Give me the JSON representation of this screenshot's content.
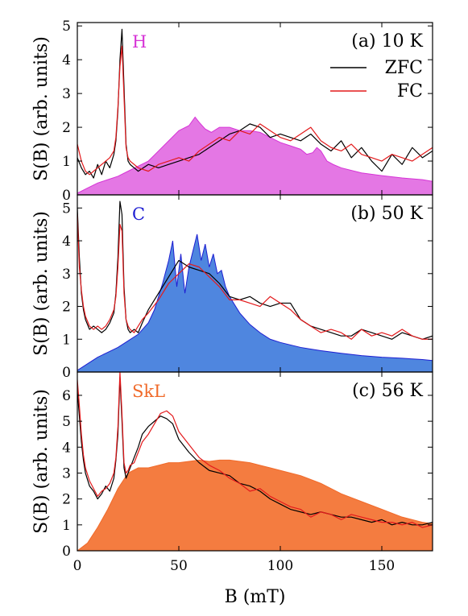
{
  "chart_data": [
    {
      "type": "area",
      "panel_label": "(a) 10 K",
      "phase_label": "H",
      "phase_color": "#d633d6",
      "fill_color": "#e477e4",
      "ylabel": "S(B) (arb. units)",
      "xlim": [
        0,
        175
      ],
      "ylim": [
        0,
        5.1
      ],
      "yticks": [
        0,
        1,
        2,
        3,
        4,
        5
      ],
      "legend": {
        "placement": "top-right",
        "entries": [
          "ZFC",
          "FC"
        ]
      },
      "series": [
        {
          "name": "ZFC",
          "style": "line",
          "color": "#000000",
          "x": [
            0,
            2,
            4,
            6,
            8,
            10,
            12,
            14,
            16,
            18,
            19,
            20,
            21,
            22,
            23,
            24,
            25,
            26,
            28,
            30,
            35,
            40,
            45,
            50,
            55,
            60,
            65,
            70,
            75,
            80,
            85,
            90,
            95,
            100,
            105,
            110,
            115,
            120,
            125,
            130,
            135,
            140,
            145,
            150,
            155,
            160,
            165,
            170,
            175
          ],
          "y": [
            1.1,
            0.8,
            0.6,
            0.7,
            0.5,
            0.9,
            0.6,
            1.0,
            0.8,
            1.2,
            1.6,
            2.5,
            4.0,
            4.9,
            3.2,
            1.5,
            1.0,
            0.9,
            0.8,
            0.7,
            0.9,
            0.8,
            0.9,
            1.0,
            1.1,
            1.2,
            1.4,
            1.6,
            1.8,
            1.9,
            2.1,
            2.0,
            1.7,
            1.8,
            1.7,
            1.6,
            1.8,
            1.5,
            1.3,
            1.6,
            1.1,
            1.4,
            1.0,
            0.7,
            1.2,
            0.9,
            1.4,
            1.1,
            1.3
          ]
        },
        {
          "name": "FC",
          "style": "line",
          "color": "#e31a1c",
          "x": [
            0,
            2,
            4,
            6,
            8,
            10,
            12,
            14,
            16,
            18,
            19,
            20,
            21,
            22,
            23,
            24,
            25,
            26,
            28,
            30,
            35,
            40,
            45,
            50,
            55,
            60,
            65,
            70,
            75,
            80,
            85,
            90,
            95,
            100,
            105,
            110,
            115,
            120,
            125,
            130,
            135,
            140,
            145,
            150,
            155,
            160,
            165,
            170,
            175
          ],
          "y": [
            1.5,
            1.0,
            0.7,
            0.6,
            0.7,
            0.8,
            0.9,
            1.0,
            1.1,
            1.3,
            1.7,
            2.6,
            3.8,
            4.4,
            2.9,
            1.4,
            1.1,
            1.0,
            0.9,
            0.8,
            0.7,
            0.9,
            1.0,
            1.1,
            1.0,
            1.3,
            1.5,
            1.7,
            1.6,
            1.9,
            1.8,
            2.1,
            1.9,
            1.7,
            1.6,
            1.8,
            2.0,
            1.6,
            1.4,
            1.3,
            1.5,
            1.2,
            1.1,
            1.0,
            1.2,
            1.1,
            1.0,
            1.2,
            1.4
          ]
        },
        {
          "name": "H",
          "style": "area",
          "color": "#e477e4",
          "x": [
            0,
            5,
            10,
            15,
            20,
            25,
            30,
            35,
            40,
            45,
            50,
            55,
            58,
            60,
            63,
            66,
            70,
            75,
            80,
            85,
            90,
            95,
            100,
            105,
            110,
            113,
            116,
            118,
            120,
            123,
            126,
            130,
            140,
            150,
            160,
            170,
            175
          ],
          "y": [
            0.05,
            0.2,
            0.35,
            0.45,
            0.55,
            0.7,
            0.85,
            1.0,
            1.3,
            1.6,
            1.9,
            2.05,
            2.3,
            2.15,
            1.95,
            1.85,
            2.0,
            2.0,
            1.9,
            1.9,
            1.85,
            1.7,
            1.55,
            1.45,
            1.35,
            1.2,
            1.25,
            1.4,
            1.3,
            1.0,
            0.9,
            0.8,
            0.65,
            0.57,
            0.5,
            0.45,
            0.4
          ]
        }
      ]
    },
    {
      "type": "area",
      "panel_label": "(b) 50 K",
      "phase_label": "C",
      "phase_color": "#1e1ed2",
      "fill_color": "#4f86df",
      "ylabel": "S(B) (arb. units)",
      "xlim": [
        0,
        175
      ],
      "ylim": [
        0,
        5.4
      ],
      "yticks": [
        0,
        1,
        2,
        3,
        4,
        5
      ],
      "series": [
        {
          "name": "ZFC",
          "style": "line",
          "color": "#000000",
          "x": [
            0,
            1,
            2,
            3,
            4,
            6,
            8,
            10,
            12,
            14,
            16,
            18,
            19,
            20,
            21,
            22,
            23,
            24,
            25,
            26,
            28,
            30,
            32,
            35,
            40,
            45,
            50,
            55,
            60,
            65,
            70,
            75,
            80,
            85,
            90,
            95,
            100,
            105,
            110,
            115,
            120,
            125,
            130,
            135,
            140,
            145,
            150,
            155,
            160,
            165,
            170,
            175
          ],
          "y": [
            5.0,
            3.5,
            2.4,
            1.9,
            1.6,
            1.3,
            1.4,
            1.3,
            1.2,
            1.3,
            1.5,
            1.8,
            2.4,
            3.5,
            5.2,
            4.8,
            2.6,
            1.6,
            1.3,
            1.2,
            1.3,
            1.2,
            1.5,
            1.9,
            2.4,
            2.9,
            3.4,
            3.2,
            3.1,
            3.0,
            2.7,
            2.3,
            2.2,
            2.3,
            2.1,
            2.0,
            2.1,
            2.1,
            1.6,
            1.4,
            1.3,
            1.2,
            1.1,
            1.1,
            1.3,
            1.2,
            1.1,
            1.0,
            1.2,
            1.1,
            1.0,
            1.1
          ]
        },
        {
          "name": "FC",
          "style": "line",
          "color": "#e31a1c",
          "x": [
            0,
            1,
            2,
            3,
            4,
            6,
            8,
            10,
            12,
            14,
            16,
            18,
            19,
            20,
            21,
            22,
            23,
            24,
            25,
            26,
            28,
            30,
            32,
            35,
            40,
            45,
            50,
            55,
            60,
            65,
            70,
            75,
            80,
            85,
            90,
            95,
            100,
            105,
            110,
            115,
            120,
            125,
            130,
            135,
            140,
            145,
            150,
            155,
            160,
            165,
            170,
            175
          ],
          "y": [
            4.8,
            3.2,
            2.5,
            2.0,
            1.7,
            1.4,
            1.3,
            1.4,
            1.3,
            1.4,
            1.6,
            1.9,
            2.3,
            3.2,
            4.5,
            4.3,
            2.4,
            1.6,
            1.4,
            1.3,
            1.2,
            1.4,
            1.6,
            1.8,
            2.2,
            2.7,
            3.0,
            3.3,
            3.2,
            2.9,
            2.6,
            2.2,
            2.2,
            2.1,
            2.0,
            2.3,
            2.1,
            1.9,
            1.6,
            1.4,
            1.2,
            1.3,
            1.2,
            1.0,
            1.3,
            1.1,
            1.2,
            1.1,
            1.3,
            1.1,
            1.0,
            1.0
          ]
        },
        {
          "name": "C",
          "style": "area",
          "color": "#4f86df",
          "x": [
            0,
            5,
            10,
            15,
            20,
            25,
            30,
            35,
            38,
            40,
            42,
            45,
            47,
            49,
            51,
            53,
            55,
            57,
            59,
            61,
            63,
            65,
            67,
            69,
            71,
            73,
            75,
            80,
            85,
            90,
            95,
            100,
            110,
            120,
            130,
            140,
            150,
            160,
            170,
            175
          ],
          "y": [
            0.05,
            0.25,
            0.45,
            0.6,
            0.75,
            0.95,
            1.15,
            1.5,
            1.9,
            2.3,
            2.7,
            3.4,
            4.0,
            2.6,
            3.6,
            2.4,
            3.2,
            3.7,
            4.2,
            3.4,
            3.9,
            3.2,
            3.6,
            3.0,
            3.1,
            2.6,
            2.3,
            1.8,
            1.45,
            1.2,
            1.0,
            0.9,
            0.75,
            0.65,
            0.57,
            0.5,
            0.45,
            0.42,
            0.38,
            0.35
          ]
        }
      ]
    },
    {
      "type": "area",
      "panel_label": "(c) 56 K",
      "phase_label": "SkL",
      "phase_color": "#f06a2a",
      "fill_color": "#f47c40",
      "ylabel": "S(B) (arb. units)",
      "xlabel": "B (mT)",
      "xlim": [
        0,
        175
      ],
      "ylim": [
        0,
        6.9
      ],
      "yticks": [
        0,
        1,
        2,
        3,
        4,
        5,
        6
      ],
      "xticks": [
        0,
        50,
        100,
        150
      ],
      "series": [
        {
          "name": "ZFC",
          "style": "line",
          "color": "#000000",
          "x": [
            0,
            1,
            2,
            3,
            4,
            6,
            8,
            10,
            12,
            14,
            16,
            18,
            19,
            20,
            21,
            22,
            23,
            24,
            25,
            26,
            28,
            30,
            32,
            35,
            38,
            41,
            44,
            47,
            50,
            55,
            60,
            65,
            70,
            75,
            80,
            85,
            90,
            95,
            100,
            105,
            110,
            115,
            120,
            125,
            130,
            135,
            140,
            145,
            150,
            155,
            160,
            165,
            170,
            175
          ],
          "y": [
            6.2,
            5.2,
            4.2,
            3.5,
            3.0,
            2.5,
            2.3,
            2.0,
            2.2,
            2.5,
            2.3,
            2.8,
            3.5,
            4.5,
            6.7,
            5.0,
            3.2,
            2.8,
            3.0,
            3.2,
            3.6,
            4.0,
            4.5,
            4.8,
            5.0,
            5.2,
            5.1,
            4.9,
            4.3,
            3.8,
            3.4,
            3.1,
            3.0,
            2.9,
            2.6,
            2.5,
            2.3,
            2.0,
            1.8,
            1.6,
            1.5,
            1.4,
            1.5,
            1.4,
            1.3,
            1.3,
            1.2,
            1.1,
            1.2,
            1.0,
            1.1,
            1.0,
            1.0,
            1.1
          ]
        },
        {
          "name": "FC",
          "style": "line",
          "color": "#e31a1c",
          "x": [
            0,
            1,
            2,
            3,
            4,
            6,
            8,
            10,
            12,
            14,
            16,
            18,
            19,
            20,
            21,
            22,
            23,
            24,
            25,
            26,
            28,
            30,
            32,
            35,
            38,
            41,
            44,
            47,
            50,
            55,
            60,
            65,
            70,
            75,
            80,
            85,
            90,
            95,
            100,
            105,
            110,
            115,
            120,
            125,
            130,
            135,
            140,
            145,
            150,
            155,
            160,
            165,
            170,
            175
          ],
          "y": [
            6.6,
            5.6,
            4.5,
            3.7,
            3.2,
            2.7,
            2.4,
            2.1,
            2.3,
            2.4,
            2.6,
            3.0,
            3.6,
            4.8,
            6.9,
            5.3,
            3.4,
            3.0,
            3.1,
            3.3,
            3.4,
            3.8,
            4.2,
            4.5,
            4.9,
            5.3,
            5.4,
            5.2,
            4.6,
            4.1,
            3.6,
            3.3,
            3.1,
            2.8,
            2.6,
            2.3,
            2.4,
            2.1,
            1.9,
            1.7,
            1.6,
            1.3,
            1.5,
            1.4,
            1.2,
            1.4,
            1.3,
            1.2,
            1.1,
            1.1,
            1.0,
            1.1,
            0.9,
            1.0
          ]
        },
        {
          "name": "SkL",
          "style": "area",
          "color": "#f47c40",
          "x": [
            0,
            5,
            10,
            15,
            20,
            25,
            30,
            35,
            40,
            45,
            50,
            55,
            60,
            65,
            70,
            75,
            80,
            85,
            90,
            95,
            100,
            110,
            120,
            130,
            140,
            150,
            160,
            170,
            175
          ],
          "y": [
            0.0,
            0.3,
            0.9,
            1.6,
            2.4,
            3.0,
            3.2,
            3.2,
            3.3,
            3.4,
            3.4,
            3.45,
            3.5,
            3.45,
            3.5,
            3.5,
            3.45,
            3.4,
            3.3,
            3.2,
            3.1,
            2.9,
            2.6,
            2.2,
            1.9,
            1.6,
            1.3,
            1.1,
            1.05
          ]
        }
      ]
    }
  ]
}
